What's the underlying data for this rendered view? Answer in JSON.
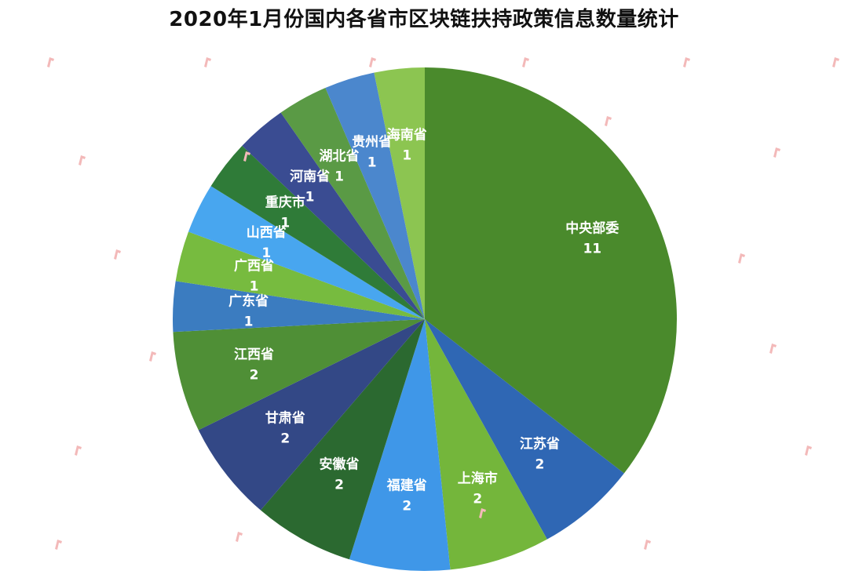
{
  "chart_data": {
    "type": "pie",
    "title": "2020年1月份国内各省市区块链扶持政策信息数量统计",
    "start_angle_deg": 0,
    "direction": "clockwise",
    "slices": [
      {
        "name": "中央部委",
        "value": 11,
        "color": "#4a8a2c"
      },
      {
        "name": "江苏省",
        "value": 2,
        "color": "#2f67b4"
      },
      {
        "name": "上海市",
        "value": 2,
        "color": "#74b63b"
      },
      {
        "name": "福建省",
        "value": 2,
        "color": "#3f97e8"
      },
      {
        "name": "安徽省",
        "value": 2,
        "color": "#2b6930"
      },
      {
        "name": "甘肃省",
        "value": 2,
        "color": "#334886"
      },
      {
        "name": "江西省",
        "value": 2,
        "color": "#4f8f36"
      },
      {
        "name": "广东省",
        "value": 1,
        "color": "#3b7cc0"
      },
      {
        "name": "广西省",
        "value": 1,
        "color": "#77bb3f"
      },
      {
        "name": "山西省",
        "value": 1,
        "color": "#48a6ef"
      },
      {
        "name": "重庆市",
        "value": 1,
        "color": "#2f7b38"
      },
      {
        "name": "河南省",
        "value": 1,
        "color": "#3a4c92"
      },
      {
        "name": "湖北省",
        "value": 1,
        "color": "#5a9a45"
      },
      {
        "name": "贵州省",
        "value": 1,
        "color": "#4b87cd"
      },
      {
        "name": "海南省",
        "value": 1,
        "color": "#8cc551"
      }
    ]
  },
  "watermark": {
    "text": "互链脉搏",
    "logo_text": "iP",
    "color": "#f3b9b9"
  }
}
